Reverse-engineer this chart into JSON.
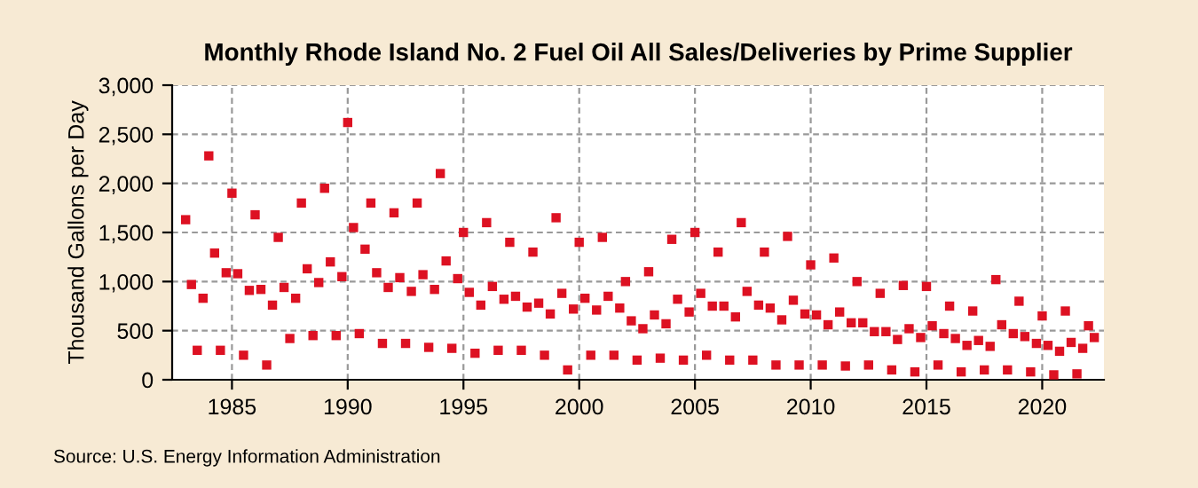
{
  "chart_data": {
    "type": "scatter",
    "title": "Monthly Rhode Island No. 2 Fuel Oil All Sales/Deliveries by Prime Supplier",
    "ylabel": "Thousand Gallons per Day",
    "x": [
      "1983-01",
      "1983-04",
      "1983-07",
      "1983-10",
      "1984-01",
      "1984-04",
      "1984-07",
      "1984-10",
      "1985-01",
      "1985-04",
      "1985-07",
      "1985-10",
      "1986-01",
      "1986-04",
      "1986-07",
      "1986-10",
      "1987-01",
      "1987-04",
      "1987-07",
      "1987-10",
      "1988-01",
      "1988-04",
      "1988-07",
      "1988-10",
      "1989-01",
      "1989-04",
      "1989-07",
      "1989-10",
      "1990-01",
      "1990-04",
      "1990-07",
      "1990-10",
      "1991-01",
      "1991-04",
      "1991-07",
      "1991-10",
      "1992-01",
      "1992-04",
      "1992-07",
      "1992-10",
      "1993-01",
      "1993-04",
      "1993-07",
      "1993-10",
      "1994-01",
      "1994-04",
      "1994-07",
      "1994-10",
      "1995-01",
      "1995-04",
      "1995-07",
      "1995-10",
      "1996-01",
      "1996-04",
      "1996-07",
      "1996-10",
      "1997-01",
      "1997-04",
      "1997-07",
      "1997-10",
      "1998-01",
      "1998-04",
      "1998-07",
      "1998-10",
      "1999-01",
      "1999-04",
      "1999-07",
      "1999-10",
      "2000-01",
      "2000-04",
      "2000-07",
      "2000-10",
      "2001-01",
      "2001-04",
      "2001-07",
      "2001-10",
      "2002-01",
      "2002-04",
      "2002-07",
      "2002-10",
      "2003-01",
      "2003-04",
      "2003-07",
      "2003-10",
      "2004-01",
      "2004-04",
      "2004-07",
      "2004-10",
      "2005-01",
      "2005-04",
      "2005-07",
      "2005-10",
      "2006-01",
      "2006-04",
      "2006-07",
      "2006-10",
      "2007-01",
      "2007-04",
      "2007-07",
      "2007-10",
      "2008-01",
      "2008-04",
      "2008-07",
      "2008-10",
      "2009-01",
      "2009-04",
      "2009-07",
      "2009-10",
      "2010-01",
      "2010-04",
      "2010-07",
      "2010-10",
      "2011-01",
      "2011-04",
      "2011-07",
      "2011-10",
      "2012-01",
      "2012-04",
      "2012-07",
      "2012-10",
      "2013-01",
      "2013-04",
      "2013-07",
      "2013-10",
      "2014-01",
      "2014-04",
      "2014-07",
      "2014-10",
      "2015-01",
      "2015-04",
      "2015-07",
      "2015-10",
      "2016-01",
      "2016-04",
      "2016-07",
      "2016-10",
      "2017-01",
      "2017-04",
      "2017-07",
      "2017-10",
      "2018-01",
      "2018-04",
      "2018-07",
      "2018-10",
      "2019-01",
      "2019-04",
      "2019-07",
      "2019-10",
      "2020-01",
      "2020-04",
      "2020-07",
      "2020-10",
      "2021-01",
      "2021-04",
      "2021-07",
      "2021-10",
      "2022-01",
      "2022-04"
    ],
    "series": [
      {
        "color": "#dd1122",
        "values": [
          1630,
          970,
          300,
          830,
          2280,
          1290,
          300,
          1090,
          1900,
          1080,
          250,
          910,
          1680,
          920,
          150,
          760,
          1450,
          940,
          420,
          830,
          1800,
          1130,
          450,
          990,
          1950,
          1200,
          450,
          1050,
          2620,
          1550,
          470,
          1330,
          1800,
          1090,
          370,
          940,
          1700,
          1040,
          370,
          900,
          1800,
          1070,
          330,
          920,
          2100,
          1210,
          320,
          1030,
          1500,
          890,
          270,
          760,
          1600,
          950,
          300,
          820,
          1400,
          850,
          300,
          740,
          1300,
          780,
          250,
          670,
          1650,
          880,
          100,
          720,
          1400,
          830,
          250,
          710,
          1450,
          850,
          250,
          730,
          1000,
          600,
          200,
          520,
          1100,
          660,
          220,
          570,
          1430,
          820,
          200,
          690,
          1500,
          880,
          250,
          750,
          1300,
          750,
          200,
          640,
          1600,
          900,
          200,
          760,
          1300,
          730,
          150,
          610,
          1460,
          810,
          150,
          670,
          1170,
          660,
          150,
          560,
          1240,
          690,
          140,
          580,
          1000,
          580,
          150,
          490,
          880,
          490,
          100,
          410,
          960,
          520,
          80,
          430,
          950,
          550,
          150,
          470,
          750,
          420,
          80,
          350,
          700,
          400,
          100,
          340,
          1020,
          560,
          100,
          470,
          800,
          440,
          80,
          370,
          650,
          350,
          50,
          290,
          700,
          380,
          60,
          320,
          550,
          430
        ]
      }
    ],
    "xlim": [
      "1982-06",
      "2022-09"
    ],
    "xticks": [
      "1985",
      "1990",
      "1995",
      "2000",
      "2005",
      "2010",
      "2015",
      "2020"
    ],
    "ylim": [
      0,
      3000
    ],
    "yticks": [
      {
        "value": 0,
        "label": "0"
      },
      {
        "value": 500,
        "label": "500"
      },
      {
        "value": 1000,
        "label": "1,000"
      },
      {
        "value": 1500,
        "label": "1,500"
      },
      {
        "value": 2000,
        "label": "2,000"
      },
      {
        "value": 2500,
        "label": "2,500"
      },
      {
        "value": 3000,
        "label": "3,000"
      }
    ],
    "grid": true,
    "marker": "square",
    "legend": false,
    "annotations": [
      "Source: U.S. Energy Information Administration"
    ]
  }
}
